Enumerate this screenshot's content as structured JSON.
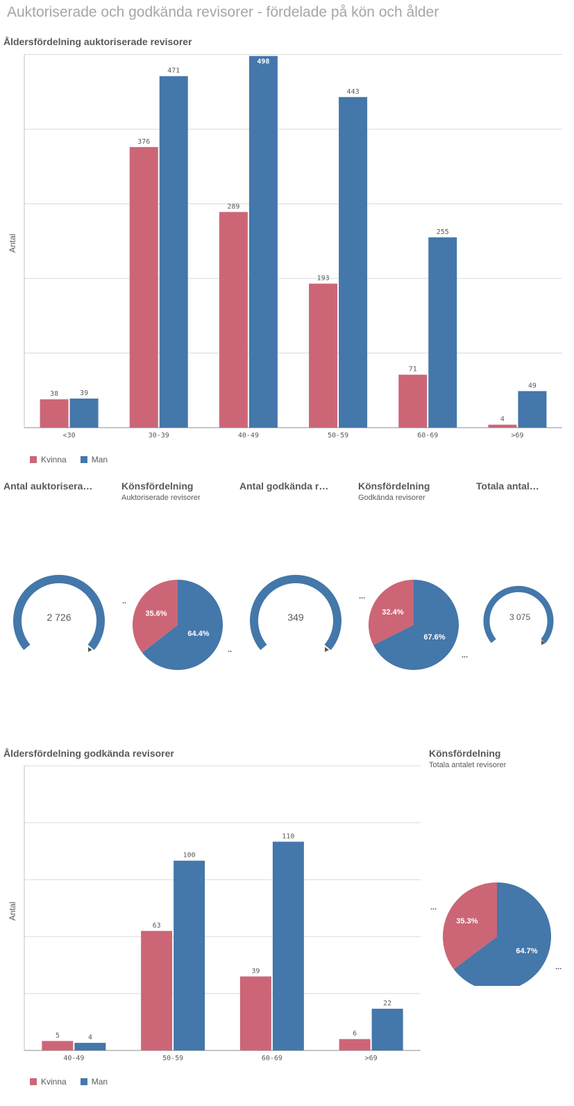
{
  "page_title": "Auktoriserade och godkända revisorer - fördelade på kön och ålder",
  "colors": {
    "kvinna": "#cc6677",
    "man": "#4477aa",
    "grid": "#d9d9d9",
    "text": "#595959"
  },
  "legend": {
    "kvinna": "Kvinna",
    "man": "Man"
  },
  "chart1": {
    "title": "Åldersfördelning auktoriserade revisorer",
    "ylabel": "Antal"
  },
  "chart2": {
    "title": "Åldersfördelning godkända revisorer",
    "ylabel": "Antal"
  },
  "kpi_row": [
    {
      "title": "Antal auktorisera…",
      "subtitle": "",
      "value": "2 726",
      "dots": ".."
    },
    {
      "title": "Könsfördelning",
      "subtitle": "Auktoriserade revisorer",
      "kvinna_pct": "35.6%",
      "man_pct": "64.4%",
      "dots": ".."
    },
    {
      "title": "Antal godkända r…",
      "subtitle": "",
      "value": "349",
      "dots": "..."
    },
    {
      "title": "Könsfördelning",
      "subtitle": "Godkända revisorer",
      "kvinna_pct": "32.4%",
      "man_pct": "67.6%",
      "dots": "..."
    },
    {
      "title": "Totala antal…",
      "subtitle": "",
      "value": "3 075",
      "dots": ""
    }
  ],
  "pie_total": {
    "title": "Könsfördelning",
    "subtitle": "Totala antalet revisorer",
    "kvinna_pct": "35.3%",
    "man_pct": "64.7%",
    "dots_left": "...",
    "dots_right": "..."
  },
  "chart_data": [
    {
      "type": "bar",
      "title": "Åldersfördelning auktoriserade revisorer",
      "ylabel": "Antal",
      "categories": [
        "<30",
        "30-39",
        "40-49",
        "50-59",
        "60-69",
        ">69"
      ],
      "series": [
        {
          "name": "Kvinna",
          "values": [
            38,
            376,
            289,
            193,
            71,
            4
          ]
        },
        {
          "name": "Man",
          "values": [
            39,
            471,
            498,
            443,
            255,
            49
          ]
        }
      ],
      "ylim": [
        0,
        500
      ],
      "grid": true,
      "legend": "bottom-left"
    },
    {
      "type": "bar",
      "title": "Åldersfördelning godkända revisorer",
      "ylabel": "Antal",
      "categories": [
        "40-49",
        "50-59",
        "60-69",
        ">69"
      ],
      "series": [
        {
          "name": "Kvinna",
          "values": [
            5,
            63,
            39,
            6
          ]
        },
        {
          "name": "Man",
          "values": [
            4,
            100,
            110,
            22
          ]
        }
      ],
      "ylim": [
        0,
        150
      ],
      "grid": true,
      "legend": "bottom-left"
    },
    {
      "type": "pie",
      "title": "Könsfördelning",
      "subtitle": "Auktoriserade revisorer",
      "labels": [
        "Kvinna",
        "Man"
      ],
      "values": [
        35.6,
        64.4
      ]
    },
    {
      "type": "pie",
      "title": "Könsfördelning",
      "subtitle": "Godkända revisorer",
      "labels": [
        "Kvinna",
        "Man"
      ],
      "values": [
        32.4,
        67.6
      ]
    },
    {
      "type": "pie",
      "title": "Könsfördelning",
      "subtitle": "Totala antalet revisorer",
      "labels": [
        "Kvinna",
        "Man"
      ],
      "values": [
        35.3,
        64.7
      ]
    }
  ]
}
